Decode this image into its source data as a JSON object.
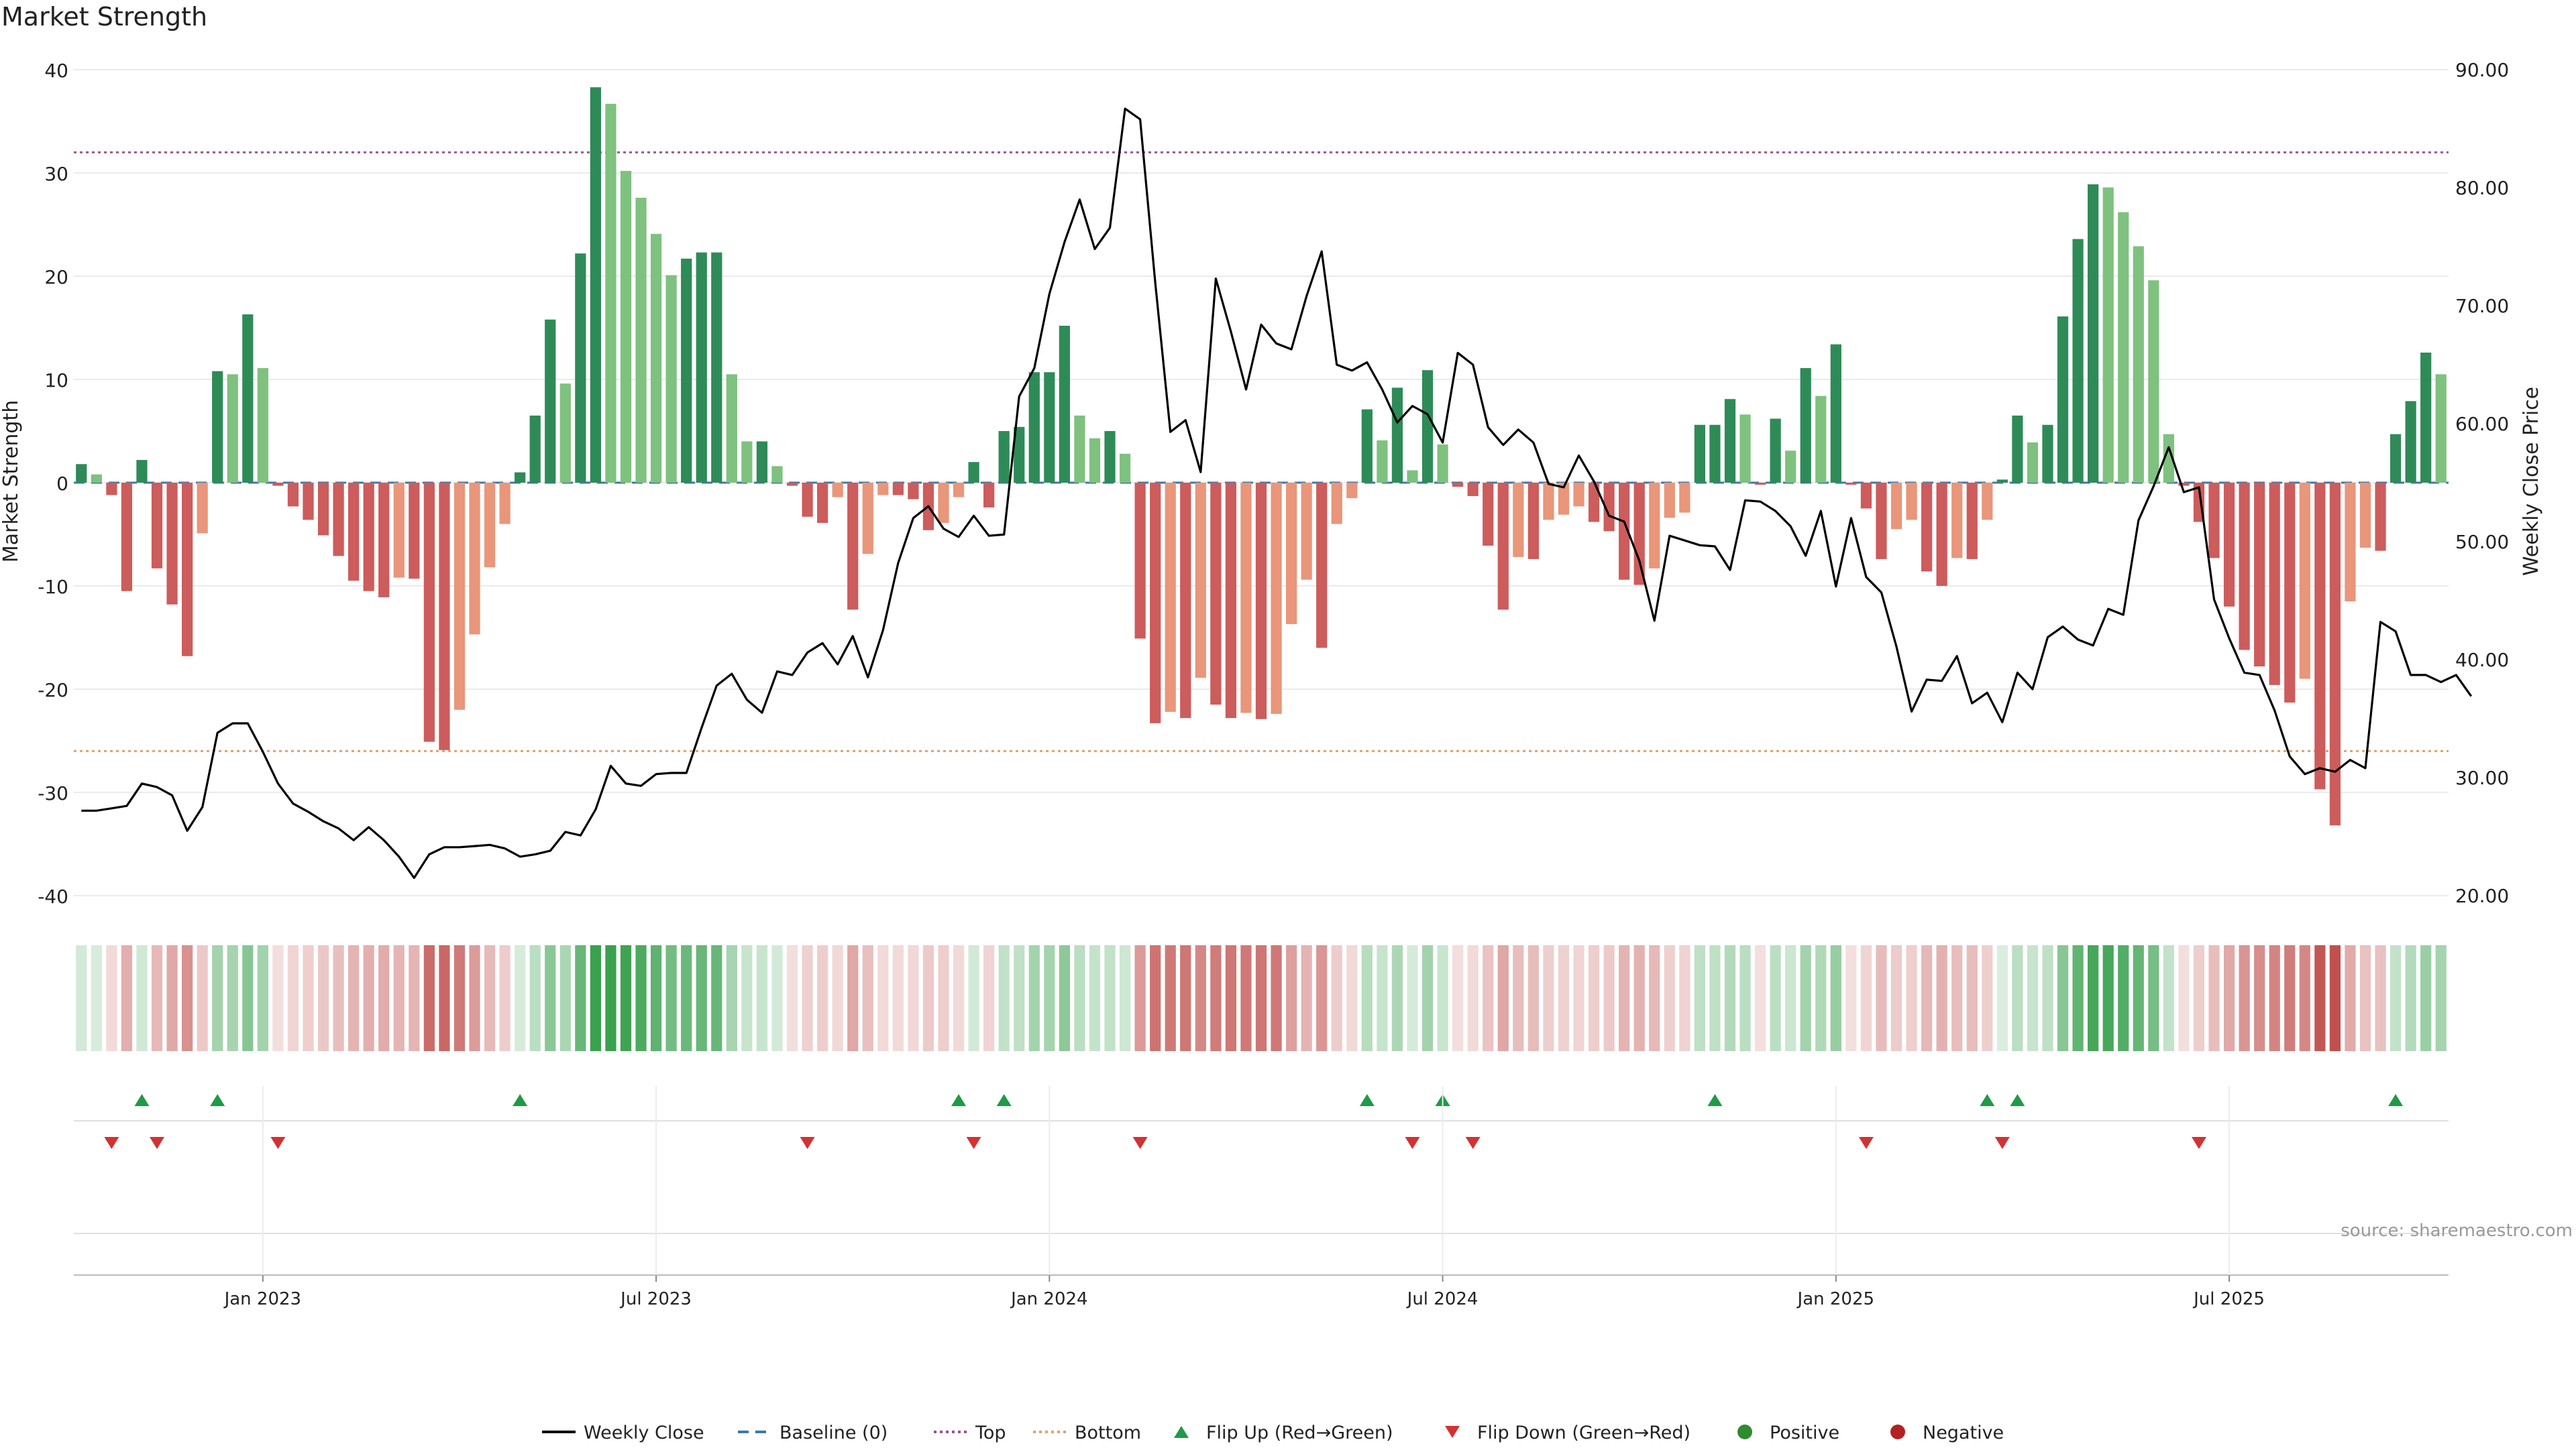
{
  "chart_data": {
    "title": "Market Strength",
    "type": "bar",
    "left_axis": {
      "label": "Market Strength",
      "ticks": [
        40,
        30,
        20,
        10,
        0,
        -10,
        -20,
        -30,
        -40
      ],
      "range": [
        -40,
        40
      ]
    },
    "right_axis": {
      "label": "Weekly Close Price",
      "ticks": [
        "90.00",
        "80.00",
        "70.00",
        "60.00",
        "50.00",
        "40.00",
        "30.00",
        "20.00"
      ],
      "range": [
        20,
        90
      ]
    },
    "x_ticks": [
      {
        "label": "Jan 2023",
        "week": 12
      },
      {
        "label": "Jul 2023",
        "week": 38
      },
      {
        "label": "Jan 2024",
        "week": 64
      },
      {
        "label": "Jul 2024",
        "week": 90
      },
      {
        "label": "Jan 2025",
        "week": 116
      },
      {
        "label": "Jul 2025",
        "week": 142
      }
    ],
    "reference_lines": {
      "top": 32,
      "bottom": -26
    },
    "series": [
      {
        "name": "Market Strength",
        "values": [
          1.8,
          0.8,
          -1.2,
          -10.5,
          2.2,
          -8.3,
          -11.8,
          -16.8,
          -4.9,
          10.8,
          10.5,
          16.3,
          11.1,
          -0.3,
          -2.3,
          -3.6,
          -5.1,
          -7.1,
          -9.5,
          -10.5,
          -11.1,
          -9.2,
          -9.3,
          -25.1,
          -25.9,
          -22.0,
          -14.7,
          -8.2,
          -4.0,
          1.0,
          6.5,
          15.8,
          9.6,
          22.2,
          38.3,
          36.7,
          30.2,
          27.6,
          24.1,
          20.1,
          21.7,
          22.3,
          22.3,
          10.5,
          4.0,
          4.0,
          1.6,
          -0.3,
          -3.3,
          -3.9,
          -1.4,
          -12.3,
          -6.9,
          -1.2,
          -1.2,
          -1.6,
          -4.6,
          -3.9,
          -1.4,
          2.0,
          -2.4,
          5.0,
          5.4,
          10.7,
          10.7,
          15.2,
          6.5,
          4.3,
          5.0,
          2.8,
          -15.1,
          -23.3,
          -22.2,
          -22.8,
          -18.9,
          -21.5,
          -22.8,
          -22.3,
          -22.9,
          -22.4,
          -13.7,
          -9.4,
          -16.0,
          -4.0,
          -1.5,
          7.1,
          4.1,
          9.2,
          1.2,
          10.9,
          3.7,
          -0.4,
          -1.3,
          -6.1,
          -12.3,
          -7.2,
          -7.4,
          -3.6,
          -3.1,
          -2.3,
          -3.8,
          -4.7,
          -9.4,
          -9.9,
          -8.3,
          -3.4,
          -2.9,
          5.6,
          5.6,
          8.1,
          6.6,
          -0.2,
          6.2,
          3.1,
          11.1,
          8.4,
          13.4,
          -0.2,
          -2.5,
          -7.4,
          -4.5,
          -3.6,
          -8.6,
          -10.0,
          -7.3,
          -7.4,
          -3.6,
          0.3,
          6.5,
          3.9,
          5.6,
          16.1,
          23.6,
          28.9,
          28.6,
          26.2,
          22.9,
          19.6,
          4.7,
          -0.3,
          -3.8,
          -7.3,
          -12.0,
          -16.2,
          -17.8,
          -19.6,
          -21.3,
          -19.0,
          -29.7,
          -33.2,
          -11.5,
          -6.3,
          -6.6,
          4.7,
          7.9,
          12.6,
          10.5
        ]
      },
      {
        "name": "Weekly Close",
        "values": [
          27.2,
          27.2,
          27.4,
          27.6,
          29.5,
          29.2,
          28.5,
          25.5,
          27.5,
          33.8,
          34.6,
          34.6,
          32.2,
          29.5,
          27.8,
          27.1,
          26.3,
          25.7,
          24.7,
          25.8,
          24.7,
          23.3,
          21.5,
          23.5,
          24.1,
          24.1,
          24.2,
          24.3,
          24.0,
          23.3,
          23.5,
          23.8,
          25.4,
          25.1,
          27.3,
          31.0,
          29.5,
          29.3,
          30.3,
          30.4,
          30.4,
          34.2,
          37.8,
          38.8,
          36.6,
          35.5,
          39.0,
          38.7,
          40.6,
          41.4,
          39.6,
          42.0,
          38.5,
          42.5,
          48.2,
          52.0,
          53.0,
          51.1,
          50.4,
          52.2,
          50.5,
          50.6,
          62.3,
          64.7,
          71.0,
          75.4,
          79.0,
          74.8,
          76.6,
          86.7,
          85.8,
          71.9,
          59.3,
          60.3,
          55.9,
          72.3,
          67.8,
          62.9,
          68.4,
          66.8,
          66.3,
          70.8,
          74.6,
          65.0,
          64.5,
          65.2,
          62.9,
          60.1,
          61.5,
          60.8,
          58.4,
          66.0,
          65.0,
          59.7,
          58.2,
          59.5,
          58.4,
          54.9,
          54.6,
          57.3,
          55.1,
          52.2,
          51.7,
          48.4,
          43.3,
          50.5,
          50.1,
          49.7,
          49.6,
          47.6,
          53.5,
          53.4,
          52.6,
          51.3,
          48.8,
          52.6,
          46.2,
          52.0,
          47.0,
          45.7,
          41.1,
          35.6,
          38.3,
          38.2,
          40.3,
          36.3,
          37.2,
          34.7,
          38.9,
          37.5,
          41.9,
          42.8,
          41.7,
          41.2,
          44.3,
          43.8,
          51.8,
          54.7,
          58.0,
          54.2,
          54.6,
          45.1,
          41.8,
          38.9,
          38.7,
          35.7,
          31.8,
          30.3,
          30.8,
          30.5,
          31.5,
          30.8,
          43.2,
          42.4,
          38.7,
          38.7,
          38.1,
          38.7,
          36.9
        ]
      }
    ],
    "flip_up_weeks": [
      4,
      9,
      29,
      58,
      61,
      85,
      90,
      108,
      126,
      128,
      153
    ],
    "flip_down_weeks": [
      2,
      5,
      13,
      48,
      59,
      70,
      88,
      92,
      118,
      127,
      140
    ],
    "source_text": "source: sharemaestro.com",
    "legend": [
      {
        "label": "Weekly Close",
        "kind": "line",
        "color": "#000000"
      },
      {
        "label": "Baseline (0)",
        "kind": "dash",
        "color": "#3a78a8"
      },
      {
        "label": "Top",
        "kind": "dot",
        "color": "#a0508a"
      },
      {
        "label": "Bottom",
        "kind": "dot",
        "color": "#e0a070"
      },
      {
        "label": "Flip Up (Red→Green)",
        "kind": "tri-up",
        "color": "#1f9a45"
      },
      {
        "label": "Flip Down (Green→Red)",
        "kind": "tri-down",
        "color": "#d23232"
      },
      {
        "label": "Positive",
        "kind": "circle",
        "color": "#2e8b2e"
      },
      {
        "label": "Negative",
        "kind": "circle",
        "color": "#b22222"
      }
    ],
    "colors": {
      "pos_strong": "#2e8b57",
      "pos_light": "#7fc17f",
      "neg_strong": "#cd5c5c",
      "neg_light": "#e9967a",
      "close_line": "#000000",
      "top_line": "#a0508a",
      "bottom_line": "#e0a070",
      "baseline": "#3a78a8",
      "grid": "#ebebeb"
    }
  }
}
